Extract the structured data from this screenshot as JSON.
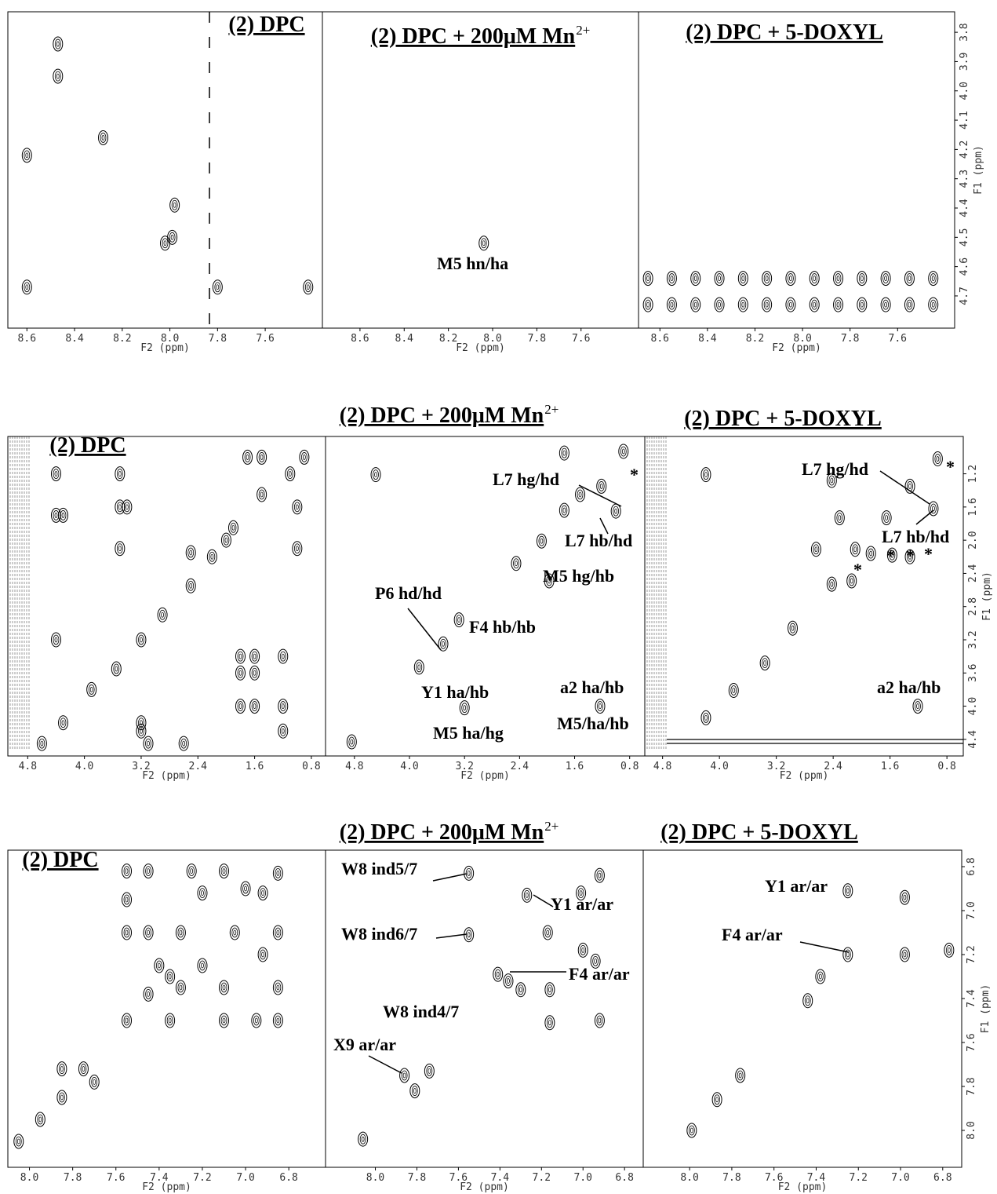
{
  "chart_data": [
    {
      "type": "scatter",
      "title": "(2) DPC",
      "xlim": [
        8.68,
        7.36
      ],
      "ylim": [
        4.81,
        3.73
      ],
      "xticks": [
        8.6,
        8.4,
        8.2,
        {
          "value": 8.0,
          "label": "8.0"
        },
        7.8,
        7.6
      ],
      "xlabel": "F2 (ppm)",
      "x": [
        8.47,
        8.47,
        8.28,
        8.6,
        7.98,
        7.99,
        8.02,
        7.8,
        7.42,
        8.6
      ],
      "y": [
        3.84,
        3.95,
        4.16,
        4.22,
        4.39,
        4.5,
        4.52,
        4.67,
        4.67,
        4.67
      ]
    },
    {
      "type": "scatter",
      "title": "(2) DPC + 200μM Mn",
      "title_superscript": "2+",
      "xlim": [
        8.77,
        7.34
      ],
      "ylim": [
        4.81,
        3.73
      ],
      "xticks": [
        8.6,
        8.4,
        8.2,
        {
          "value": 8.0,
          "label": "8.0"
        },
        7.8,
        7.6
      ],
      "xlabel": "F2 (ppm)",
      "annotations": [
        "M5 hn/ha"
      ],
      "x": [
        8.04
      ],
      "y": [
        4.52
      ]
    },
    {
      "type": "scatter",
      "title": "(2) DPC + 5-DOXYL",
      "xlim": [
        8.69,
        7.36
      ],
      "ylim": [
        4.81,
        3.73
      ],
      "xticks": [
        8.6,
        8.4,
        8.2,
        {
          "value": 8.0,
          "label": "8.0"
        },
        7.8,
        7.6
      ],
      "xlabel": "F2 (ppm)",
      "yticks": [
        3.8,
        3.9,
        {
          "value": 4.0,
          "label": "4.0"
        },
        4.1,
        4.2,
        4.3,
        4.4,
        4.5,
        4.6,
        4.7
      ],
      "ylabel": "F1 (ppm)",
      "x": [
        8.65,
        8.55,
        8.45,
        8.35,
        8.25,
        8.15,
        8.05,
        7.95,
        7.85,
        7.75,
        7.65,
        7.55,
        7.45,
        8.65,
        8.55,
        8.45,
        8.35,
        8.25,
        8.15,
        8.05,
        7.95,
        7.85,
        7.75,
        7.65,
        7.55,
        7.45
      ],
      "y": [
        4.64,
        4.64,
        4.64,
        4.64,
        4.64,
        4.64,
        4.64,
        4.64,
        4.64,
        4.64,
        4.64,
        4.64,
        4.64,
        4.73,
        4.73,
        4.73,
        4.73,
        4.73,
        4.73,
        4.73,
        4.73,
        4.73,
        4.73,
        4.73,
        4.73,
        4.73
      ]
    },
    {
      "type": "scatter",
      "title": "(2) DPC",
      "xlim": [
        5.08,
        0.6
      ],
      "ylim": [
        4.6,
        0.75
      ],
      "xticks": [
        4.8,
        {
          "value": 4.0,
          "label": "4.0"
        },
        3.2,
        2.4,
        1.6,
        0.8
      ],
      "xlabel": "F2 (ppm)",
      "x": [
        4.6,
        4.3,
        3.9,
        3.55,
        3.2,
        2.9,
        2.5,
        2.2,
        1.9,
        1.5,
        1.1,
        0.9,
        4.4,
        3.5,
        4.4,
        4.3,
        3.5,
        3.4,
        3.5,
        1.7,
        1.5,
        1.0,
        1.0,
        2.5,
        2.0,
        4.4,
        3.2,
        3.2,
        3.1,
        2.6,
        1.8,
        1.6,
        1.2,
        1.2,
        1.8,
        1.6,
        1.2,
        1.8,
        1.6
      ],
      "y": [
        4.45,
        4.2,
        3.8,
        3.55,
        3.2,
        2.9,
        2.55,
        2.2,
        1.85,
        1.45,
        1.2,
        1.0,
        1.2,
        1.2,
        1.7,
        1.7,
        1.6,
        1.6,
        2.1,
        1.0,
        1.0,
        1.6,
        2.1,
        2.15,
        2.0,
        3.2,
        4.2,
        4.3,
        4.45,
        4.45,
        4.0,
        4.0,
        4.0,
        4.3,
        3.4,
        3.4,
        3.4,
        3.6,
        3.6
      ]
    },
    {
      "type": "scatter",
      "title": "(2) DPC + 200μM Mn",
      "title_superscript": "2+",
      "xlim": [
        5.22,
        0.58
      ],
      "ylim": [
        4.6,
        0.75
      ],
      "xticks": [
        4.8,
        {
          "value": 4.0,
          "label": "4.0"
        },
        3.2,
        2.4,
        1.6,
        0.8
      ],
      "xlabel": "F2 (ppm)",
      "annotations": [
        "L7 hg/hd",
        "*",
        "L7 hb/hd",
        "M5 hg/hb",
        "P6 hd/hd",
        "F4 hb/hb",
        "Y1 ha/hb",
        "a2 ha/hb",
        "M5 ha/hg",
        "M5/ha/hb"
      ],
      "x": [
        4.84,
        1.52,
        0.89,
        1.21,
        1.0,
        1.75,
        2.08,
        2.45,
        1.97,
        3.28,
        3.51,
        3.86,
        1.23,
        3.2,
        4.49,
        1.75
      ],
      "y": [
        4.43,
        1.45,
        0.93,
        1.35,
        1.65,
        1.64,
        2.01,
        2.28,
        2.49,
        2.96,
        3.25,
        3.53,
        4.0,
        4.02,
        1.21,
        0.95
      ]
    },
    {
      "type": "scatter",
      "title": "(2) DPC + 5-DOXYL",
      "xlim": [
        5.05,
        0.57
      ],
      "ylim": [
        4.6,
        0.75
      ],
      "xticks": [
        4.8,
        {
          "value": 4.0,
          "label": "4.0"
        },
        3.2,
        2.4,
        1.6,
        0.8
      ],
      "xlabel": "F2 (ppm)",
      "yticks": [
        1.2,
        1.6,
        {
          "value": 2.0,
          "label": "2.0"
        },
        2.4,
        2.8,
        3.2,
        3.6,
        {
          "value": 4.0,
          "label": "4.0"
        },
        4.4
      ],
      "ylabel": "F1 (ppm)",
      "annotations": [
        "L7 hg/hd",
        "*",
        "L7 hb/hd",
        "*",
        "*",
        "*",
        "*",
        "a2 ha/hb"
      ],
      "x": [
        4.19,
        3.8,
        3.36,
        2.97,
        2.42,
        2.09,
        1.65,
        1.32,
        0.93,
        2.42,
        2.31,
        2.64,
        2.14,
        1.87,
        1.57,
        1.32,
        0.99,
        1.21,
        4.19
      ],
      "y": [
        4.14,
        3.81,
        3.48,
        3.06,
        2.53,
        2.11,
        1.73,
        1.35,
        1.02,
        1.28,
        1.73,
        2.11,
        2.49,
        2.16,
        2.18,
        2.2,
        1.62,
        4.0,
        1.21
      ]
    },
    {
      "type": "scatter",
      "title": "(2) DPC",
      "xlim": [
        8.1,
        6.63
      ],
      "ylim": [
        8.168,
        6.725
      ],
      "xticks": [
        {
          "value": 8.0,
          "label": "8.0"
        },
        7.8,
        7.6,
        7.4,
        7.2,
        {
          "value": 7.0,
          "label": "7.0"
        },
        6.8
      ],
      "xlabel": "F2 (ppm)",
      "x": [
        7.55,
        7.45,
        7.25,
        7.1,
        6.85,
        7.55,
        7.0,
        6.92,
        7.55,
        7.45,
        7.3,
        7.2,
        7.05,
        6.85,
        6.92,
        7.4,
        7.35,
        7.2,
        7.3,
        7.45,
        7.1,
        6.85,
        7.55,
        7.35,
        7.1,
        6.95,
        6.85,
        8.05,
        7.95,
        7.85,
        7.75,
        7.85,
        7.7
      ],
      "y": [
        6.82,
        6.82,
        6.82,
        6.82,
        6.83,
        6.95,
        6.9,
        6.92,
        7.1,
        7.1,
        7.1,
        6.92,
        7.1,
        7.1,
        7.2,
        7.25,
        7.3,
        7.25,
        7.35,
        7.38,
        7.35,
        7.35,
        7.5,
        7.5,
        7.5,
        7.5,
        7.5,
        8.05,
        7.95,
        7.85,
        7.72,
        7.72,
        7.78
      ]
    },
    {
      "type": "scatter",
      "title": "(2) DPC + 200μM Mn",
      "title_superscript": "2+",
      "xlim": [
        8.24,
        6.71
      ],
      "ylim": [
        8.168,
        6.725
      ],
      "xticks": [
        {
          "value": 8.0,
          "label": "8.0"
        },
        7.8,
        7.6,
        7.4,
        7.2,
        {
          "value": 7.0,
          "label": "7.0"
        },
        6.8
      ],
      "xlabel": "F2 (ppm)",
      "annotations": [
        "W8 ind5/7",
        "W8 ind6/7",
        "Y1 ar/ar",
        "F4 ar/ar",
        "W8 ind4/7",
        "X9 ar/ar"
      ],
      "x": [
        7.55,
        7.55,
        7.27,
        7.01,
        6.92,
        7.17,
        7.0,
        6.94,
        7.36,
        7.41,
        7.3,
        7.16,
        7.16,
        6.92,
        7.81,
        7.86,
        7.74,
        8.06
      ],
      "y": [
        6.83,
        7.11,
        6.93,
        6.92,
        6.84,
        7.1,
        7.18,
        7.23,
        7.32,
        7.29,
        7.36,
        7.36,
        7.51,
        7.5,
        7.82,
        7.75,
        7.73,
        8.04
      ]
    },
    {
      "type": "scatter",
      "title": "(2) DPC + 5-DOXYL",
      "xlim": [
        8.22,
        6.71
      ],
      "ylim": [
        8.168,
        6.725
      ],
      "xticks": [
        {
          "value": 8.0,
          "label": "8.0"
        },
        7.8,
        7.6,
        7.4,
        7.2,
        {
          "value": 7.0,
          "label": "7.0"
        },
        6.8
      ],
      "xlabel": "F2 (ppm)",
      "yticks": [
        6.8,
        {
          "value": 7.0,
          "label": "7.0"
        },
        7.2,
        7.4,
        7.6,
        7.8,
        {
          "value": 8.0,
          "label": "8.0"
        }
      ],
      "ylabel": "F1 (ppm)",
      "annotations": [
        "Y1 ar/ar",
        "F4 ar/ar"
      ],
      "x": [
        7.25,
        6.98,
        6.98,
        6.77,
        7.25,
        7.38,
        7.44,
        7.76,
        7.87,
        7.99
      ],
      "y": [
        6.91,
        6.94,
        7.2,
        7.18,
        7.2,
        7.3,
        7.41,
        7.75,
        7.86,
        8.0
      ]
    }
  ]
}
